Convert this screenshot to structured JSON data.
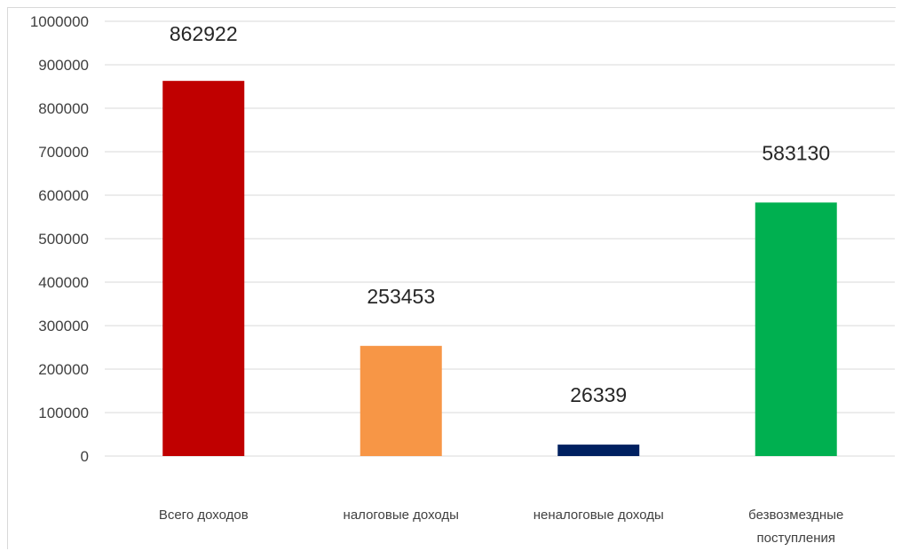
{
  "chart_data": {
    "type": "bar",
    "categories": [
      [
        "Всего доходов"
      ],
      [
        "налоговые доходы"
      ],
      [
        "неналоговые доходы"
      ],
      [
        "безвозмездные",
        "поступления"
      ]
    ],
    "values": [
      862922,
      253453,
      26339,
      583130
    ],
    "data_labels": [
      "862922",
      "253453",
      "26339",
      "583130"
    ],
    "colors": [
      "#c00000",
      "#f79646",
      "#002060",
      "#00b050"
    ],
    "ylim": [
      0,
      1000000
    ],
    "yticks": [
      0,
      100000,
      200000,
      300000,
      400000,
      500000,
      600000,
      700000,
      800000,
      900000,
      1000000
    ],
    "ytick_labels": [
      "0",
      "100000",
      "200000",
      "300000",
      "400000",
      "500000",
      "600000",
      "700000",
      "800000",
      "900000",
      "1000000"
    ],
    "grid": true,
    "legend": "none"
  }
}
